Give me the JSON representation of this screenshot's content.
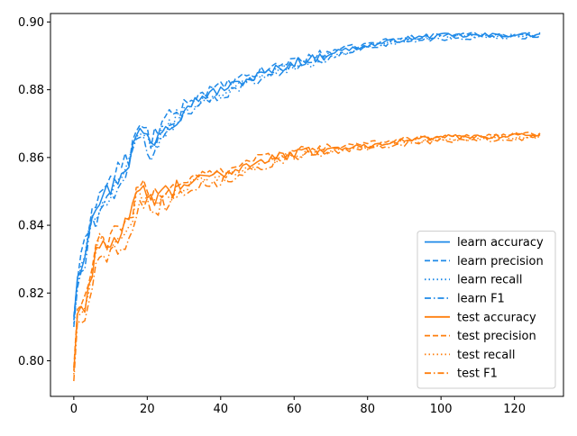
{
  "chart_data": {
    "type": "line",
    "title": "",
    "xlabel": "",
    "ylabel": "",
    "xlim": [
      -6.35,
      133.35
    ],
    "ylim": [
      0.7895,
      0.9025
    ],
    "x_ticks": [
      0,
      20,
      40,
      60,
      80,
      100,
      120
    ],
    "x_tick_labels": [
      "0",
      "20",
      "40",
      "60",
      "80",
      "100",
      "120"
    ],
    "y_ticks": [
      0.8,
      0.82,
      0.84,
      0.86,
      0.88,
      0.9
    ],
    "y_tick_labels": [
      "0.80",
      "0.82",
      "0.84",
      "0.86",
      "0.88",
      "0.90"
    ],
    "grid": false,
    "legend_placement": "lower-right",
    "x_range": [
      0,
      127
    ],
    "series": [
      {
        "name": "learn accuracy",
        "color": "#1f8ae8",
        "style": "solid",
        "points": [
          [
            0,
            0.812
          ],
          [
            1,
            0.826
          ],
          [
            3,
            0.832
          ],
          [
            5,
            0.845
          ],
          [
            7,
            0.848
          ],
          [
            9,
            0.85
          ],
          [
            11,
            0.852
          ],
          [
            13,
            0.856
          ],
          [
            15,
            0.859
          ],
          [
            17,
            0.866
          ],
          [
            19,
            0.868
          ],
          [
            21,
            0.864
          ],
          [
            24,
            0.869
          ],
          [
            27,
            0.871
          ],
          [
            30,
            0.875
          ],
          [
            35,
            0.878
          ],
          [
            40,
            0.88
          ],
          [
            45,
            0.882
          ],
          [
            50,
            0.884
          ],
          [
            55,
            0.886
          ],
          [
            60,
            0.888
          ],
          [
            65,
            0.889
          ],
          [
            70,
            0.891
          ],
          [
            75,
            0.892
          ],
          [
            80,
            0.893
          ],
          [
            85,
            0.894
          ],
          [
            90,
            0.895
          ],
          [
            95,
            0.8955
          ],
          [
            100,
            0.896
          ],
          [
            110,
            0.896
          ],
          [
            120,
            0.8962
          ],
          [
            127,
            0.8962
          ]
        ]
      },
      {
        "name": "learn precision",
        "color": "#1f8ae8",
        "style": "dashed",
        "points": [
          [
            0,
            0.813
          ],
          [
            1,
            0.825
          ],
          [
            3,
            0.834
          ],
          [
            5,
            0.846
          ],
          [
            7,
            0.849
          ],
          [
            9,
            0.852
          ],
          [
            11,
            0.855
          ],
          [
            13,
            0.858
          ],
          [
            15,
            0.86
          ],
          [
            17,
            0.867
          ],
          [
            19,
            0.869
          ],
          [
            21,
            0.865
          ],
          [
            24,
            0.87
          ],
          [
            27,
            0.872
          ],
          [
            30,
            0.876
          ],
          [
            35,
            0.879
          ],
          [
            40,
            0.881
          ],
          [
            45,
            0.883
          ],
          [
            50,
            0.885
          ],
          [
            55,
            0.887
          ],
          [
            60,
            0.889
          ],
          [
            65,
            0.8895
          ],
          [
            70,
            0.8915
          ],
          [
            75,
            0.8925
          ],
          [
            80,
            0.8935
          ],
          [
            85,
            0.8945
          ],
          [
            90,
            0.8952
          ],
          [
            95,
            0.8958
          ],
          [
            100,
            0.8962
          ],
          [
            110,
            0.8963
          ],
          [
            120,
            0.8963
          ],
          [
            127,
            0.8963
          ]
        ]
      },
      {
        "name": "learn recall",
        "color": "#1f8ae8",
        "style": "dotted",
        "points": [
          [
            0,
            0.811
          ],
          [
            1,
            0.823
          ],
          [
            3,
            0.83
          ],
          [
            5,
            0.842
          ],
          [
            7,
            0.846
          ],
          [
            9,
            0.848
          ],
          [
            11,
            0.851
          ],
          [
            13,
            0.855
          ],
          [
            15,
            0.857
          ],
          [
            17,
            0.865
          ],
          [
            19,
            0.866
          ],
          [
            21,
            0.862
          ],
          [
            24,
            0.867
          ],
          [
            27,
            0.87
          ],
          [
            30,
            0.874
          ],
          [
            35,
            0.877
          ],
          [
            40,
            0.879
          ],
          [
            45,
            0.881
          ],
          [
            50,
            0.884
          ],
          [
            55,
            0.886
          ],
          [
            60,
            0.887
          ],
          [
            65,
            0.888
          ],
          [
            70,
            0.89
          ],
          [
            75,
            0.891
          ],
          [
            80,
            0.893
          ],
          [
            85,
            0.8935
          ],
          [
            90,
            0.8945
          ],
          [
            95,
            0.895
          ],
          [
            100,
            0.8955
          ],
          [
            110,
            0.8958
          ],
          [
            120,
            0.8958
          ],
          [
            127,
            0.896
          ]
        ]
      },
      {
        "name": "learn F1",
        "color": "#1f8ae8",
        "style": "dashdot",
        "points": [
          [
            0,
            0.81
          ],
          [
            1,
            0.822
          ],
          [
            3,
            0.828
          ],
          [
            5,
            0.84
          ],
          [
            7,
            0.844
          ],
          [
            9,
            0.847
          ],
          [
            11,
            0.85
          ],
          [
            13,
            0.854
          ],
          [
            15,
            0.856
          ],
          [
            17,
            0.864
          ],
          [
            19,
            0.865
          ],
          [
            21,
            0.861
          ],
          [
            24,
            0.866
          ],
          [
            27,
            0.869
          ],
          [
            30,
            0.873
          ],
          [
            35,
            0.876
          ],
          [
            40,
            0.878
          ],
          [
            45,
            0.881
          ],
          [
            50,
            0.883
          ],
          [
            55,
            0.885
          ],
          [
            60,
            0.887
          ],
          [
            65,
            0.888
          ],
          [
            70,
            0.8895
          ],
          [
            75,
            0.891
          ],
          [
            80,
            0.8925
          ],
          [
            85,
            0.8935
          ],
          [
            90,
            0.8942
          ],
          [
            95,
            0.8948
          ],
          [
            100,
            0.8952
          ],
          [
            110,
            0.8955
          ],
          [
            120,
            0.8956
          ],
          [
            127,
            0.8958
          ]
        ]
      },
      {
        "name": "test accuracy",
        "color": "#ff7f0e",
        "style": "solid",
        "points": [
          [
            0,
            0.797
          ],
          [
            1,
            0.814
          ],
          [
            3,
            0.817
          ],
          [
            5,
            0.826
          ],
          [
            7,
            0.836
          ],
          [
            9,
            0.834
          ],
          [
            11,
            0.836
          ],
          [
            13,
            0.839
          ],
          [
            15,
            0.84
          ],
          [
            17,
            0.848
          ],
          [
            19,
            0.85
          ],
          [
            21,
            0.848
          ],
          [
            24,
            0.849
          ],
          [
            27,
            0.85
          ],
          [
            30,
            0.852
          ],
          [
            35,
            0.854
          ],
          [
            40,
            0.855
          ],
          [
            45,
            0.857
          ],
          [
            50,
            0.859
          ],
          [
            55,
            0.86
          ],
          [
            60,
            0.861
          ],
          [
            65,
            0.862
          ],
          [
            70,
            0.8625
          ],
          [
            75,
            0.863
          ],
          [
            80,
            0.8635
          ],
          [
            85,
            0.8645
          ],
          [
            90,
            0.865
          ],
          [
            95,
            0.8655
          ],
          [
            100,
            0.866
          ],
          [
            110,
            0.8662
          ],
          [
            120,
            0.8665
          ],
          [
            127,
            0.8668
          ]
        ]
      },
      {
        "name": "test precision",
        "color": "#ff7f0e",
        "style": "dashed",
        "points": [
          [
            0,
            0.798
          ],
          [
            1,
            0.815
          ],
          [
            3,
            0.818
          ],
          [
            5,
            0.827
          ],
          [
            7,
            0.837
          ],
          [
            9,
            0.835
          ],
          [
            11,
            0.837
          ],
          [
            13,
            0.84
          ],
          [
            15,
            0.841
          ],
          [
            17,
            0.849
          ],
          [
            19,
            0.851
          ],
          [
            21,
            0.849
          ],
          [
            24,
            0.85
          ],
          [
            27,
            0.851
          ],
          [
            30,
            0.853
          ],
          [
            35,
            0.855
          ],
          [
            40,
            0.856
          ],
          [
            45,
            0.858
          ],
          [
            50,
            0.86
          ],
          [
            55,
            0.8605
          ],
          [
            60,
            0.8615
          ],
          [
            65,
            0.8625
          ],
          [
            70,
            0.863
          ],
          [
            75,
            0.8635
          ],
          [
            80,
            0.864
          ],
          [
            85,
            0.865
          ],
          [
            90,
            0.8655
          ],
          [
            95,
            0.866
          ],
          [
            100,
            0.8662
          ],
          [
            110,
            0.8665
          ],
          [
            120,
            0.8668
          ],
          [
            127,
            0.867
          ]
        ]
      },
      {
        "name": "test recall",
        "color": "#ff7f0e",
        "style": "dotted",
        "points": [
          [
            0,
            0.796
          ],
          [
            1,
            0.813
          ],
          [
            3,
            0.816
          ],
          [
            5,
            0.825
          ],
          [
            7,
            0.835
          ],
          [
            9,
            0.833
          ],
          [
            11,
            0.835
          ],
          [
            13,
            0.838
          ],
          [
            15,
            0.839
          ],
          [
            17,
            0.847
          ],
          [
            19,
            0.849
          ],
          [
            21,
            0.847
          ],
          [
            24,
            0.848
          ],
          [
            27,
            0.849
          ],
          [
            30,
            0.851
          ],
          [
            35,
            0.853
          ],
          [
            40,
            0.854
          ],
          [
            45,
            0.856
          ],
          [
            50,
            0.858
          ],
          [
            55,
            0.8595
          ],
          [
            60,
            0.8605
          ],
          [
            65,
            0.8615
          ],
          [
            70,
            0.862
          ],
          [
            75,
            0.8625
          ],
          [
            80,
            0.863
          ],
          [
            85,
            0.864
          ],
          [
            90,
            0.8645
          ],
          [
            95,
            0.865
          ],
          [
            100,
            0.8655
          ],
          [
            110,
            0.8658
          ],
          [
            120,
            0.866
          ],
          [
            127,
            0.8662
          ]
        ]
      },
      {
        "name": "test F1",
        "color": "#ff7f0e",
        "style": "dashdot",
        "points": [
          [
            0,
            0.794
          ],
          [
            1,
            0.811
          ],
          [
            3,
            0.814
          ],
          [
            5,
            0.823
          ],
          [
            7,
            0.831
          ],
          [
            9,
            0.83
          ],
          [
            11,
            0.832
          ],
          [
            13,
            0.835
          ],
          [
            15,
            0.836
          ],
          [
            17,
            0.845
          ],
          [
            19,
            0.847
          ],
          [
            21,
            0.845
          ],
          [
            24,
            0.846
          ],
          [
            27,
            0.848
          ],
          [
            30,
            0.85
          ],
          [
            35,
            0.852
          ],
          [
            40,
            0.853
          ],
          [
            45,
            0.855
          ],
          [
            50,
            0.857
          ],
          [
            55,
            0.859
          ],
          [
            60,
            0.86
          ],
          [
            65,
            0.861
          ],
          [
            70,
            0.8615
          ],
          [
            75,
            0.862
          ],
          [
            80,
            0.8625
          ],
          [
            85,
            0.8635
          ],
          [
            90,
            0.864
          ],
          [
            95,
            0.8645
          ],
          [
            100,
            0.865
          ],
          [
            110,
            0.8653
          ],
          [
            120,
            0.8655
          ],
          [
            127,
            0.8658
          ]
        ]
      }
    ]
  }
}
